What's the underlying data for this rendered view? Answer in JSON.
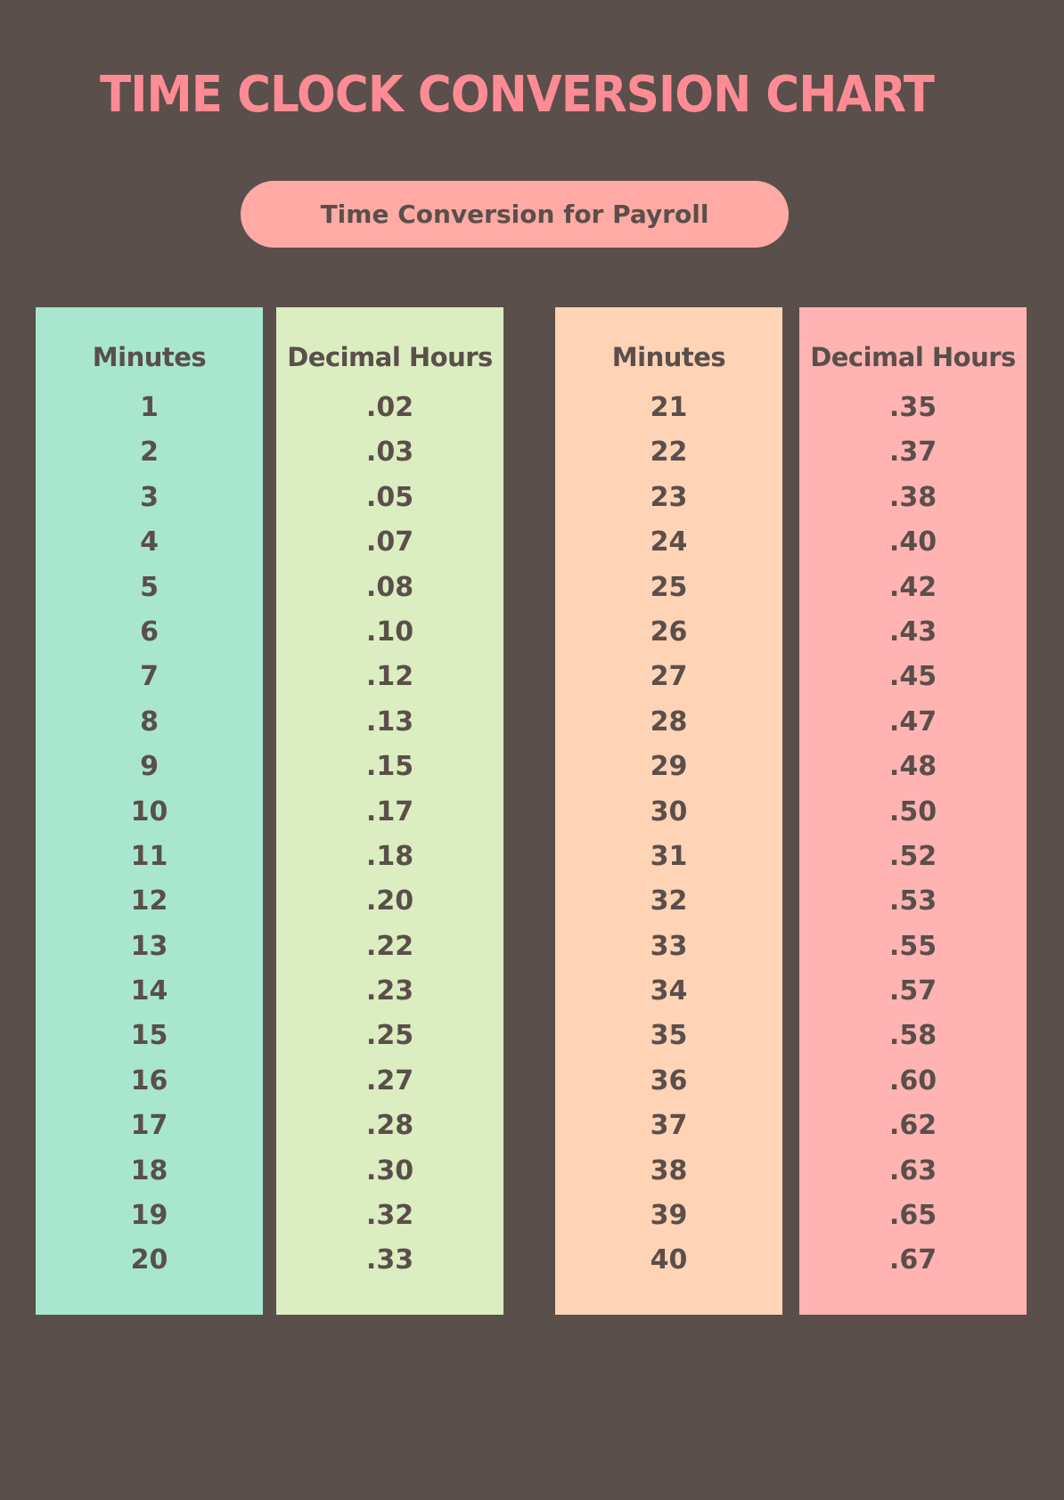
{
  "title": "TIME CLOCK CONVERSION CHART",
  "subtitle": "Time Conversion for Payroll",
  "colors": {
    "background": "#5a4f4a",
    "title": "#ff8b94",
    "pill": "#ffaaa5",
    "col1": "#a8e6cf",
    "col2": "#dcedc1",
    "col3": "#ffd3b6",
    "col4": "#ffb3b3"
  },
  "columns": [
    {
      "header": "Minutes",
      "values": [
        "1",
        "2",
        "3",
        "4",
        "5",
        "6",
        "7",
        "8",
        "9",
        "10",
        "11",
        "12",
        "13",
        "14",
        "15",
        "16",
        "17",
        "18",
        "19",
        "20"
      ]
    },
    {
      "header": "Decimal Hours",
      "values": [
        ".02",
        ".03",
        ".05",
        ".07",
        ".08",
        ".10",
        ".12",
        ".13",
        ".15",
        ".17",
        ".18",
        ".20",
        ".22",
        ".23",
        ".25",
        ".27",
        ".28",
        ".30",
        ".32",
        ".33"
      ]
    },
    {
      "header": "Minutes",
      "values": [
        "21",
        "22",
        "23",
        "24",
        "25",
        "26",
        "27",
        "28",
        "29",
        "30",
        "31",
        "32",
        "33",
        "34",
        "35",
        "36",
        "37",
        "38",
        "39",
        "40"
      ]
    },
    {
      "header": "Decimal Hours",
      "values": [
        ".35",
        ".37",
        ".38",
        ".40",
        ".42",
        ".43",
        ".45",
        ".47",
        ".48",
        ".50",
        ".52",
        ".53",
        ".55",
        ".57",
        ".58",
        ".60",
        ".62",
        ".63",
        ".65",
        ".67"
      ]
    }
  ]
}
